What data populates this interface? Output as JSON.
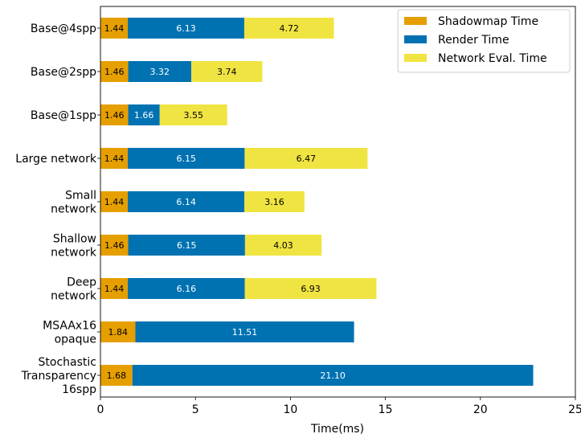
{
  "chart_data": {
    "type": "bar",
    "orientation": "horizontal",
    "stacked": true,
    "xlabel": "Time(ms)",
    "ylabel": "",
    "xlim": [
      0,
      25
    ],
    "xticks": [
      "0",
      "5",
      "10",
      "15",
      "20",
      "25"
    ],
    "grid": false,
    "legend_position": "top-right",
    "categories": [
      [
        "Base@4spp"
      ],
      [
        "Base@2spp"
      ],
      [
        "Base@1spp"
      ],
      [
        "Large network"
      ],
      [
        "Small",
        "network"
      ],
      [
        "Shallow",
        "network"
      ],
      [
        "Deep",
        "network"
      ],
      [
        "MSAAx16",
        "opaque"
      ],
      [
        "Stochastic",
        "Transparency",
        "16spp"
      ]
    ],
    "series": [
      {
        "name": "Shadowmap Time",
        "color": "#E69F00",
        "label_color": "#000000",
        "values": [
          1.44,
          1.46,
          1.46,
          1.44,
          1.44,
          1.46,
          1.44,
          1.84,
          1.68
        ],
        "labels": [
          "1.44",
          "1.46",
          "1.46",
          "1.44",
          "1.44",
          "1.46",
          "1.44",
          "1.84",
          "1.68"
        ]
      },
      {
        "name": "Render Time",
        "color": "#0072B2",
        "label_color": "#ffffff",
        "values": [
          6.13,
          3.32,
          1.66,
          6.15,
          6.14,
          6.15,
          6.16,
          11.51,
          21.1
        ],
        "labels": [
          "6.13",
          "3.32",
          "1.66",
          "6.15",
          "6.14",
          "6.15",
          "6.16",
          "11.51",
          "21.10"
        ]
      },
      {
        "name": "Network Eval. Time",
        "color": "#F0E442",
        "label_color": "#000000",
        "values": [
          4.72,
          3.74,
          3.55,
          6.47,
          3.16,
          4.03,
          6.93,
          0,
          0
        ],
        "labels": [
          "4.72",
          "3.74",
          "3.55",
          "6.47",
          "3.16",
          "4.03",
          "6.93",
          "",
          ""
        ]
      }
    ]
  }
}
